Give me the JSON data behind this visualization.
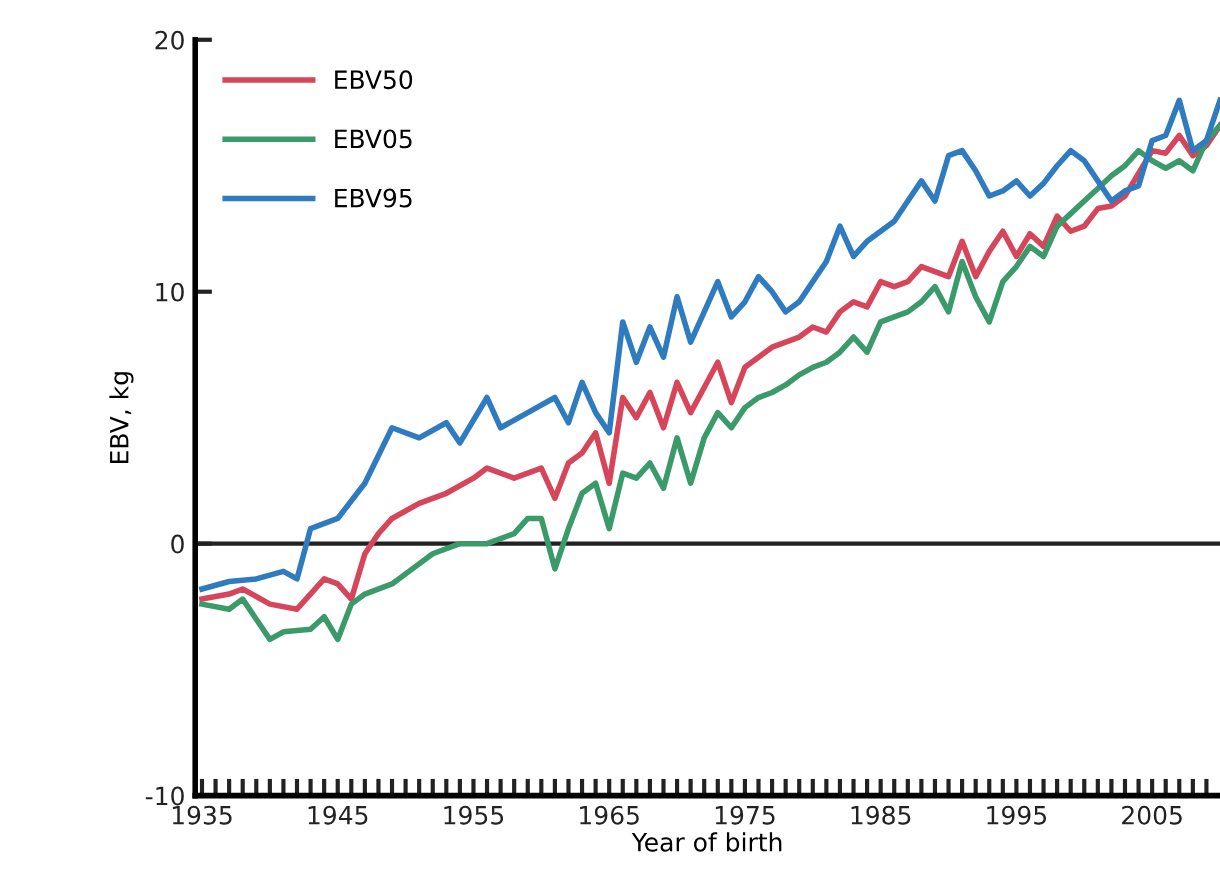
{
  "chart_data": {
    "type": "line",
    "xlabel": "Year of birth",
    "ylabel": "EBV, kg",
    "xlim": [
      1934.5,
      2010
    ],
    "ylim": [
      -10,
      20
    ],
    "yticks": [
      -10,
      0,
      10,
      20
    ],
    "xticks": [
      1935,
      {
        "value": 1936,
        "label": null
      },
      {
        "value": 1937,
        "label": null
      },
      {
        "value": 1938,
        "label": null
      },
      {
        "value": 1939,
        "label": null
      },
      {
        "value": 1940,
        "label": null
      },
      {
        "value": 1941,
        "label": null
      },
      {
        "value": 1942,
        "label": null
      },
      {
        "value": 1943,
        "label": null
      },
      {
        "value": 1944,
        "label": null
      },
      1945,
      {
        "value": 1946,
        "label": null
      },
      {
        "value": 1947,
        "label": null
      },
      {
        "value": 1948,
        "label": null
      },
      {
        "value": 1949,
        "label": null
      },
      {
        "value": 1950,
        "label": null
      },
      {
        "value": 1951,
        "label": null
      },
      {
        "value": 1952,
        "label": null
      },
      {
        "value": 1953,
        "label": null
      },
      {
        "value": 1954,
        "label": null
      },
      1955,
      {
        "value": 1956,
        "label": null
      },
      {
        "value": 1957,
        "label": null
      },
      {
        "value": 1958,
        "label": null
      },
      {
        "value": 1959,
        "label": null
      },
      {
        "value": 1960,
        "label": null
      },
      {
        "value": 1961,
        "label": null
      },
      {
        "value": 1962,
        "label": null
      },
      {
        "value": 1963,
        "label": null
      },
      {
        "value": 1964,
        "label": null
      },
      1965,
      {
        "value": 1966,
        "label": null
      },
      {
        "value": 1967,
        "label": null
      },
      {
        "value": 1968,
        "label": null
      },
      {
        "value": 1969,
        "label": null
      },
      {
        "value": 1970,
        "label": null
      },
      {
        "value": 1971,
        "label": null
      },
      {
        "value": 1972,
        "label": null
      },
      {
        "value": 1973,
        "label": null
      },
      {
        "value": 1974,
        "label": null
      },
      1975,
      {
        "value": 1976,
        "label": null
      },
      {
        "value": 1977,
        "label": null
      },
      {
        "value": 1978,
        "label": null
      },
      {
        "value": 1979,
        "label": null
      },
      {
        "value": 1980,
        "label": null
      },
      {
        "value": 1981,
        "label": null
      },
      {
        "value": 1982,
        "label": null
      },
      {
        "value": 1983,
        "label": null
      },
      {
        "value": 1984,
        "label": null
      },
      1985,
      {
        "value": 1986,
        "label": null
      },
      {
        "value": 1987,
        "label": null
      },
      {
        "value": 1988,
        "label": null
      },
      {
        "value": 1989,
        "label": null
      },
      {
        "value": 1990,
        "label": null
      },
      {
        "value": 1991,
        "label": null
      },
      {
        "value": 1992,
        "label": null
      },
      {
        "value": 1993,
        "label": null
      },
      {
        "value": 1994,
        "label": null
      },
      1995,
      {
        "value": 1996,
        "label": null
      },
      {
        "value": 1997,
        "label": null
      },
      {
        "value": 1998,
        "label": null
      },
      {
        "value": 1999,
        "label": null
      },
      {
        "value": 2000,
        "label": null
      },
      {
        "value": 2001,
        "label": null
      },
      {
        "value": 2002,
        "label": null
      },
      {
        "value": 2003,
        "label": null
      },
      {
        "value": 2004,
        "label": null
      },
      2005,
      {
        "value": 2006,
        "label": null
      },
      {
        "value": 2007,
        "label": null
      },
      {
        "value": 2008,
        "label": null
      },
      {
        "value": 2009,
        "label": null
      }
    ],
    "ref_lines": [
      {
        "axis": "y",
        "value": 0,
        "color": "#222222"
      }
    ],
    "legend": "top left",
    "grid": false,
    "marker": "none",
    "line_style": "solid",
    "series": [
      {
        "name": "EBV50",
        "color": "#d6455a",
        "x": [
          1935,
          1937,
          1938,
          1940,
          1942,
          1944,
          1945,
          1946,
          1947,
          1948,
          1949,
          1951,
          1953,
          1955,
          1956,
          1958,
          1960,
          1961,
          1962,
          1963,
          1964,
          1965,
          1966,
          1967,
          1968,
          1969,
          1970,
          1971,
          1972,
          1973,
          1974,
          1975,
          1976,
          1977,
          1978,
          1979,
          1980,
          1981,
          1982,
          1983,
          1984,
          1985,
          1986,
          1987,
          1988,
          1989,
          1990,
          1991,
          1992,
          1993,
          1994,
          1995,
          1996,
          1997,
          1998,
          1999,
          2000,
          2001,
          2002,
          2003,
          2004,
          2005,
          2006,
          2007,
          2008,
          2009,
          2010
        ],
        "values": [
          -2.2,
          -2.0,
          -1.8,
          -2.4,
          -2.6,
          -1.4,
          -1.6,
          -2.2,
          -0.4,
          0.4,
          1.0,
          1.6,
          2.0,
          2.6,
          3.0,
          2.6,
          3.0,
          1.8,
          3.2,
          3.6,
          4.4,
          2.4,
          5.8,
          5.0,
          6.0,
          4.6,
          6.4,
          5.2,
          6.2,
          7.2,
          5.6,
          7.0,
          7.4,
          7.8,
          8.0,
          8.2,
          8.6,
          8.4,
          9.2,
          9.6,
          9.4,
          10.4,
          10.2,
          10.4,
          11.0,
          10.8,
          10.6,
          12.0,
          10.6,
          11.6,
          12.4,
          11.4,
          12.3,
          11.8,
          13.0,
          12.4,
          12.6,
          13.3,
          13.4,
          13.8,
          14.7,
          15.6,
          15.5,
          16.2,
          15.4,
          15.8,
          16.6
        ]
      },
      {
        "name": "EBV05",
        "color": "#3a9a6a",
        "x": [
          1935,
          1937,
          1938,
          1940,
          1941,
          1943,
          1944,
          1945,
          1946,
          1947,
          1949,
          1950,
          1952,
          1954,
          1956,
          1958,
          1959,
          1960,
          1961,
          1962,
          1963,
          1964,
          1965,
          1966,
          1967,
          1968,
          1969,
          1970,
          1971,
          1972,
          1973,
          1974,
          1975,
          1976,
          1977,
          1978,
          1979,
          1980,
          1981,
          1982,
          1983,
          1984,
          1985,
          1986,
          1987,
          1988,
          1989,
          1990,
          1991,
          1992,
          1993,
          1994,
          1995,
          1996,
          1997,
          1998,
          1999,
          2000,
          2001,
          2002,
          2003,
          2004,
          2005,
          2006,
          2007,
          2008,
          2009,
          2010
        ],
        "values": [
          -2.4,
          -2.6,
          -2.2,
          -3.8,
          -3.5,
          -3.4,
          -2.9,
          -3.8,
          -2.4,
          -2.0,
          -1.6,
          -1.2,
          -0.4,
          0.0,
          0.0,
          0.4,
          1.0,
          1.0,
          -1.0,
          0.6,
          2.0,
          2.4,
          0.6,
          2.8,
          2.6,
          3.2,
          2.2,
          4.2,
          2.4,
          4.2,
          5.2,
          4.6,
          5.4,
          5.8,
          6.0,
          6.3,
          6.7,
          7.0,
          7.2,
          7.6,
          8.2,
          7.6,
          8.8,
          9.0,
          9.2,
          9.6,
          10.2,
          9.2,
          11.2,
          9.8,
          8.8,
          10.4,
          11.0,
          11.8,
          11.4,
          12.6,
          13.1,
          13.6,
          14.1,
          14.6,
          15.0,
          15.6,
          15.2,
          14.9,
          15.2,
          14.8,
          16.0,
          16.6
        ]
      },
      {
        "name": "EBV95",
        "color": "#2f7bbf",
        "x": [
          1935,
          1937,
          1939,
          1941,
          1942,
          1943,
          1945,
          1947,
          1949,
          1951,
          1953,
          1954,
          1956,
          1957,
          1959,
          1961,
          1962,
          1963,
          1964,
          1965,
          1966,
          1967,
          1968,
          1969,
          1970,
          1971,
          1972,
          1973,
          1974,
          1975,
          1976,
          1977,
          1978,
          1979,
          1980,
          1981,
          1982,
          1983,
          1984,
          1985,
          1986,
          1987,
          1988,
          1989,
          1990,
          1991,
          1992,
          1993,
          1994,
          1995,
          1996,
          1997,
          1998,
          1999,
          2000,
          2001,
          2002,
          2003,
          2004,
          2005,
          2006,
          2007,
          2008,
          2009,
          2010
        ],
        "values": [
          -1.8,
          -1.5,
          -1.4,
          -1.1,
          -1.4,
          0.6,
          1.0,
          2.4,
          4.6,
          4.2,
          4.8,
          4.0,
          5.8,
          4.6,
          5.2,
          5.8,
          4.8,
          6.4,
          5.2,
          4.4,
          8.8,
          7.2,
          8.6,
          7.4,
          9.8,
          8.0,
          9.2,
          10.4,
          9.0,
          9.6,
          10.6,
          10.0,
          9.2,
          9.6,
          10.4,
          11.2,
          12.6,
          11.4,
          12.0,
          12.4,
          12.8,
          13.6,
          14.4,
          13.6,
          15.4,
          15.6,
          14.8,
          13.8,
          14.0,
          14.4,
          13.8,
          14.3,
          15.0,
          15.6,
          15.2,
          14.4,
          13.6,
          14.0,
          14.2,
          16.0,
          16.2,
          17.6,
          15.6,
          16.0,
          17.6
        ]
      }
    ]
  }
}
